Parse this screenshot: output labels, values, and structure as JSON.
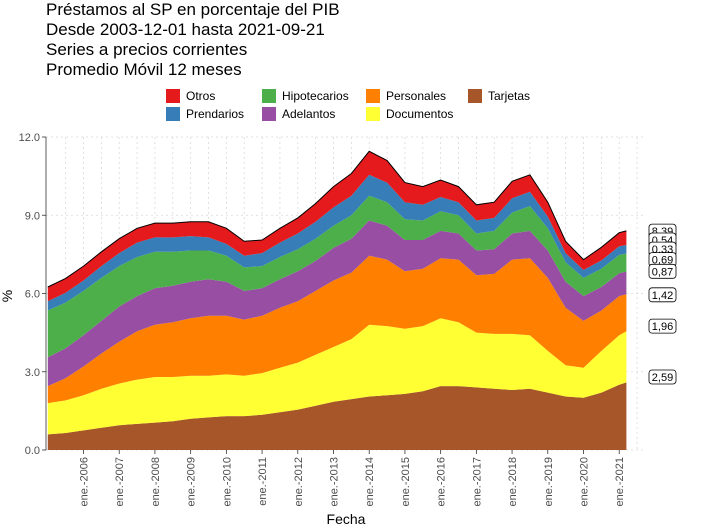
{
  "chart_data": {
    "type": "area",
    "stacked": true,
    "title_lines": [
      "Préstamos al SP en porcentaje del PIB",
      "Desde 2003-12-01 hasta 2021-09-21",
      "Series a precios corrientes",
      "Promedio Móvil 12 meses"
    ],
    "xlabel": "Fecha",
    "ylabel": "%",
    "ylim": [
      0,
      12
    ],
    "y_ticks": [
      "0.0",
      "3.0",
      "6.0",
      "9.0",
      "12.0"
    ],
    "y_tick_values": [
      0,
      3,
      6,
      9,
      12
    ],
    "x_ticks": [
      "ene.-2006",
      "ene.-2007",
      "ene.-2008",
      "ene.-2009",
      "ene.-2010",
      "ene.-2011",
      "ene.-2012",
      "ene.-2013",
      "ene.-2014",
      "ene.-2015",
      "ene.-2016",
      "ene.-2017",
      "ene.-2018",
      "ene.-2019",
      "ene.-2020",
      "ene.-2021"
    ],
    "x_tick_values": [
      2006,
      2007,
      2008,
      2009,
      2010,
      2011,
      2012,
      2013,
      2014,
      2015,
      2016,
      2017,
      2018,
      2019,
      2020,
      2021
    ],
    "x_range": [
      2004.95,
      2021.75
    ],
    "grid": true,
    "legend_position": "top",
    "x": [
      2005.0,
      2005.5,
      2006.0,
      2006.5,
      2007.0,
      2007.5,
      2008.0,
      2008.5,
      2009.0,
      2009.5,
      2010.0,
      2010.5,
      2011.0,
      2011.5,
      2012.0,
      2012.5,
      2013.0,
      2013.5,
      2014.0,
      2014.5,
      2015.0,
      2015.5,
      2016.0,
      2016.5,
      2017.0,
      2017.5,
      2018.0,
      2018.5,
      2019.0,
      2019.5,
      2020.0,
      2020.5,
      2021.0,
      2021.2
    ],
    "stack_order": [
      "Tarjetas",
      "Documentos",
      "Personales",
      "Adelantos",
      "Hipotecarios",
      "Prendarios",
      "Otros"
    ],
    "series": [
      {
        "name": "Tarjetas",
        "color": "#A65628",
        "values": [
          0.6,
          0.65,
          0.75,
          0.85,
          0.95,
          1.0,
          1.05,
          1.1,
          1.2,
          1.25,
          1.3,
          1.3,
          1.35,
          1.45,
          1.55,
          1.7,
          1.85,
          1.95,
          2.05,
          2.1,
          2.15,
          2.25,
          2.45,
          2.45,
          2.4,
          2.35,
          2.3,
          2.35,
          2.2,
          2.05,
          2.0,
          2.2,
          2.5,
          2.59
        ]
      },
      {
        "name": "Documentos",
        "color": "#FFFF33",
        "values": [
          1.2,
          1.25,
          1.35,
          1.5,
          1.6,
          1.7,
          1.75,
          1.7,
          1.65,
          1.6,
          1.6,
          1.55,
          1.6,
          1.7,
          1.8,
          1.95,
          2.1,
          2.3,
          2.75,
          2.65,
          2.5,
          2.5,
          2.6,
          2.45,
          2.1,
          2.1,
          2.15,
          2.05,
          1.6,
          1.2,
          1.15,
          1.6,
          1.9,
          1.96
        ]
      },
      {
        "name": "Personales",
        "color": "#FF7F00",
        "values": [
          0.65,
          0.85,
          1.1,
          1.35,
          1.6,
          1.85,
          2.0,
          2.1,
          2.2,
          2.3,
          2.25,
          2.15,
          2.2,
          2.3,
          2.35,
          2.45,
          2.55,
          2.55,
          2.65,
          2.55,
          2.2,
          2.2,
          2.3,
          2.4,
          2.2,
          2.3,
          2.85,
          2.95,
          2.8,
          2.2,
          1.8,
          1.55,
          1.5,
          1.42
        ]
      },
      {
        "name": "Adelantos",
        "color": "#984EA3",
        "values": [
          1.1,
          1.15,
          1.2,
          1.25,
          1.35,
          1.35,
          1.4,
          1.4,
          1.4,
          1.4,
          1.3,
          1.1,
          1.05,
          1.1,
          1.15,
          1.15,
          1.25,
          1.3,
          1.35,
          1.3,
          1.2,
          1.1,
          1.05,
          1.0,
          0.95,
          0.95,
          1.0,
          1.05,
          1.05,
          1.0,
          0.95,
          0.9,
          0.88,
          0.87
        ]
      },
      {
        "name": "Hipotecarios",
        "color": "#4DAF4A",
        "values": [
          1.8,
          1.75,
          1.7,
          1.65,
          1.55,
          1.5,
          1.4,
          1.3,
          1.2,
          1.1,
          1.0,
          0.9,
          0.85,
          0.85,
          0.85,
          0.85,
          0.85,
          0.9,
          0.95,
          0.9,
          0.8,
          0.75,
          0.75,
          0.7,
          0.65,
          0.7,
          0.8,
          0.95,
          0.85,
          0.75,
          0.7,
          0.7,
          0.7,
          0.69
        ]
      },
      {
        "name": "Prendarios",
        "color": "#377EB8",
        "values": [
          0.35,
          0.38,
          0.4,
          0.45,
          0.5,
          0.55,
          0.55,
          0.55,
          0.55,
          0.5,
          0.45,
          0.45,
          0.5,
          0.55,
          0.6,
          0.65,
          0.7,
          0.75,
          0.8,
          0.75,
          0.65,
          0.6,
          0.55,
          0.5,
          0.5,
          0.5,
          0.55,
          0.55,
          0.45,
          0.35,
          0.3,
          0.32,
          0.33,
          0.33
        ]
      },
      {
        "name": "Otros",
        "color": "#E41A1C",
        "values": [
          0.55,
          0.55,
          0.55,
          0.55,
          0.55,
          0.55,
          0.55,
          0.55,
          0.55,
          0.6,
          0.6,
          0.55,
          0.5,
          0.55,
          0.6,
          0.7,
          0.8,
          0.85,
          0.9,
          0.85,
          0.75,
          0.7,
          0.65,
          0.6,
          0.6,
          0.6,
          0.65,
          0.65,
          0.55,
          0.45,
          0.4,
          0.5,
          0.52,
          0.54
        ]
      }
    ],
    "end_labels": [
      "8,39",
      "0,54",
      "0,33",
      "0,69",
      "0,87",
      "1,42",
      "1,96",
      "2,59"
    ],
    "end_label_values": [
      8.39,
      8.05,
      7.7,
      7.3,
      6.85,
      5.95,
      4.75,
      2.8
    ]
  }
}
